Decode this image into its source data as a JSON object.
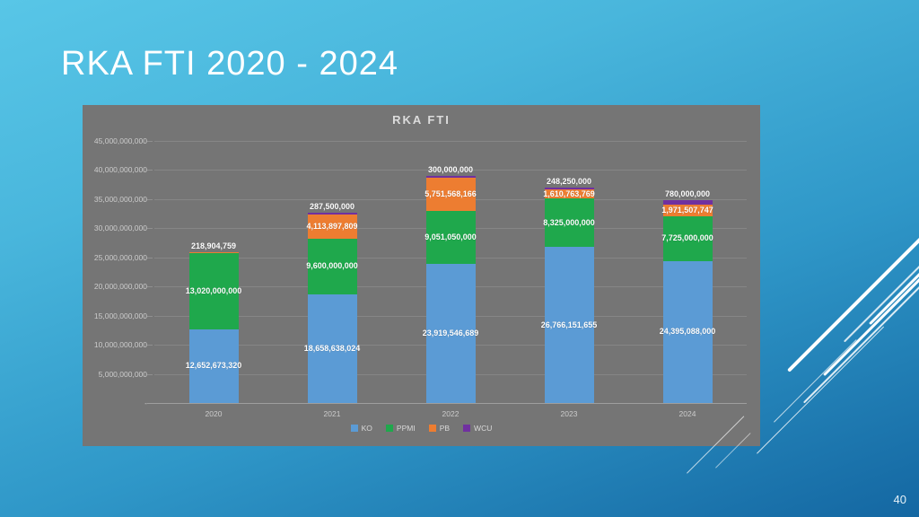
{
  "slide": {
    "title": "RKA FTI 2020 - 2024",
    "page_number": "40"
  },
  "chart_data": {
    "type": "bar",
    "stacked": true,
    "title": "RKA FTI",
    "categories": [
      "2020",
      "2021",
      "2022",
      "2023",
      "2024"
    ],
    "series": [
      {
        "name": "KO",
        "color": "#5B9BD5",
        "values": [
          12652673320,
          18658638024,
          23919546689,
          26766151655,
          24395088000
        ]
      },
      {
        "name": "PPMI",
        "color": "#1FA84C",
        "values": [
          13020000000,
          9600000000,
          9051050000,
          8325000000,
          7725000000
        ]
      },
      {
        "name": "PB",
        "color": "#ED7D31",
        "values": [
          218904759,
          4113897809,
          5751568166,
          1610763769,
          1971507747
        ]
      },
      {
        "name": "WCU",
        "color": "#7030A0",
        "values": [
          0,
          287500000,
          300000000,
          248250000,
          780000000
        ]
      }
    ],
    "ylim": [
      0,
      45000000000
    ],
    "ytick_step": 5000000000,
    "ytick_labels": [
      "-",
      "5,000,000,000",
      "10,000,000,000",
      "15,000,000,000",
      "20,000,000,000",
      "25,000,000,000",
      "30,000,000,000",
      "35,000,000,000",
      "40,000,000,000",
      "45,000,000,000"
    ],
    "grid": true,
    "legend_position": "bottom",
    "panel_color": "#757575",
    "axis_text_color": "#cccccc",
    "data_label_color": "#ffffff"
  }
}
